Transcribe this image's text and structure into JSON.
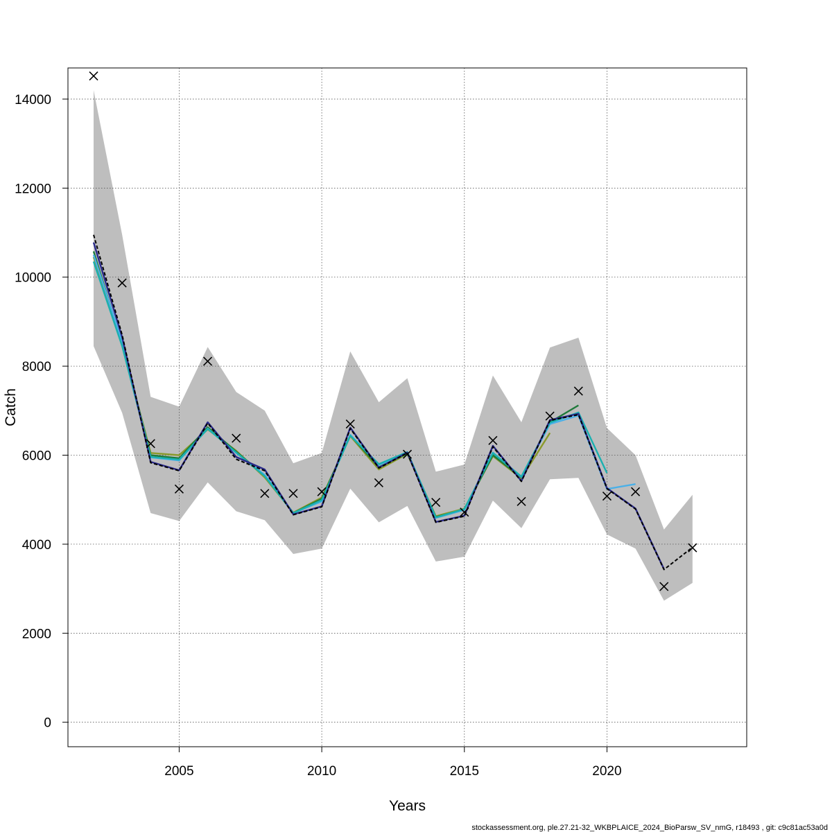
{
  "chart_data": {
    "type": "line",
    "xlabel": "Years",
    "ylabel": "Catch",
    "xlim": [
      2001.1,
      2024.9
    ],
    "ylim": [
      -550,
      14700
    ],
    "x_ticks": [
      2005,
      2010,
      2015,
      2020
    ],
    "y_ticks": [
      0,
      2000,
      4000,
      6000,
      8000,
      10000,
      12000,
      14000
    ],
    "grid": true,
    "band": {
      "x": [
        2002,
        2003,
        2004,
        2005,
        2006,
        2007,
        2008,
        2009,
        2010,
        2011,
        2012,
        2013,
        2014,
        2015,
        2016,
        2017,
        2018,
        2019,
        2020,
        2021,
        2022,
        2023
      ],
      "lower": [
        8450,
        6950,
        4700,
        4520,
        5390,
        4740,
        4540,
        3780,
        3900,
        5250,
        4490,
        4860,
        3610,
        3720,
        4980,
        4360,
        5460,
        5490,
        4220,
        3900,
        2730,
        3130
      ],
      "upper": [
        14200,
        10950,
        7310,
        7090,
        8430,
        7420,
        7000,
        5820,
        6050,
        8330,
        7190,
        7730,
        5630,
        5790,
        7790,
        6740,
        8420,
        8640,
        6610,
        6000,
        4330,
        5110
      ]
    },
    "series": [
      {
        "color": "#000000",
        "dash": true,
        "x": [
          2002,
          2003,
          2004,
          2005,
          2006,
          2007,
          2008,
          2009,
          2010,
          2011,
          2012,
          2013,
          2014,
          2015,
          2016,
          2017,
          2018,
          2019,
          2020,
          2021,
          2022,
          2023
        ],
        "values": [
          10950,
          8700,
          5830,
          5650,
          6720,
          5910,
          5650,
          4660,
          4840,
          6600,
          5710,
          6050,
          4490,
          4630,
          6190,
          5410,
          6780,
          6910,
          5250,
          4790,
          3430,
          3930
        ]
      },
      {
        "color": "#2a2a8a",
        "dash": false,
        "x": [
          2002,
          2003,
          2004,
          2005,
          2006,
          2007,
          2008,
          2009,
          2010,
          2011,
          2012,
          2013,
          2014,
          2015,
          2016,
          2017,
          2018,
          2019,
          2020,
          2021,
          2022
        ],
        "values": [
          10780,
          8650,
          5850,
          5660,
          6740,
          5960,
          5680,
          4670,
          4850,
          6620,
          5720,
          6060,
          4500,
          4640,
          6210,
          5420,
          6790,
          6930,
          5260,
          4800,
          3440
        ]
      },
      {
        "color": "#1ab0b0",
        "dash": false,
        "x": [
          2002,
          2003,
          2004,
          2005,
          2006,
          2007,
          2008,
          2009,
          2010,
          2011,
          2012,
          2013,
          2014,
          2015,
          2016,
          2017,
          2018,
          2019,
          2020
        ],
        "values": [
          10350,
          8450,
          5960,
          5900,
          6590,
          6060,
          5530,
          4700,
          4990,
          6440,
          5800,
          6070,
          4600,
          4790,
          6050,
          5520,
          6730,
          6960,
          5600
        ]
      },
      {
        "color": "#4ab0e8",
        "dash": false,
        "x": [
          2002,
          2003,
          2004,
          2005,
          2006,
          2007,
          2008,
          2009,
          2010,
          2011,
          2012,
          2013,
          2014,
          2015,
          2016,
          2017,
          2018,
          2019,
          2020,
          2021
        ],
        "values": [
          10500,
          8550,
          5950,
          5880,
          6600,
          6050,
          5560,
          4700,
          4960,
          6460,
          5780,
          6060,
          4590,
          4770,
          6060,
          5510,
          6700,
          6890,
          5240,
          5350
        ]
      },
      {
        "color": "#1e7a3a",
        "dash": false,
        "x": [
          2002,
          2003,
          2004,
          2005,
          2006,
          2007,
          2008,
          2009,
          2010,
          2011,
          2012,
          2013,
          2014,
          2015,
          2016,
          2017,
          2018,
          2019
        ],
        "values": [
          10580,
          8500,
          6000,
          5930,
          6630,
          6080,
          5540,
          4700,
          5020,
          6450,
          5730,
          6040,
          4610,
          4780,
          6000,
          5500,
          6740,
          7120
        ]
      },
      {
        "color": "#8a9a2a",
        "dash": false,
        "x": [
          2002,
          2003,
          2004,
          2005,
          2006,
          2007,
          2008,
          2009,
          2010,
          2011,
          2012,
          2013,
          2014,
          2015,
          2016,
          2017,
          2018
        ],
        "values": [
          10450,
          8480,
          6050,
          6000,
          6580,
          6100,
          5500,
          4710,
          5050,
          6430,
          5680,
          6030,
          4630,
          4800,
          5980,
          5480,
          6500
        ]
      }
    ],
    "observations": {
      "x": [
        2002,
        2003,
        2004,
        2005,
        2006,
        2007,
        2008,
        2009,
        2010,
        2011,
        2012,
        2013,
        2014,
        2015,
        2016,
        2017,
        2018,
        2019,
        2020,
        2021,
        2022,
        2023
      ],
      "values": [
        14520,
        9870,
        6260,
        5240,
        8110,
        6380,
        5140,
        5140,
        5180,
        6700,
        5380,
        6020,
        4940,
        4720,
        6330,
        4960,
        6880,
        7440,
        5080,
        5180,
        3050,
        3920
      ]
    },
    "footer": "stockassessment.org, ple.27.21-32_WKBPLAICE_2024_BioParsw_SV_nmG, r18493 , git: c9c81ac53a0d"
  }
}
